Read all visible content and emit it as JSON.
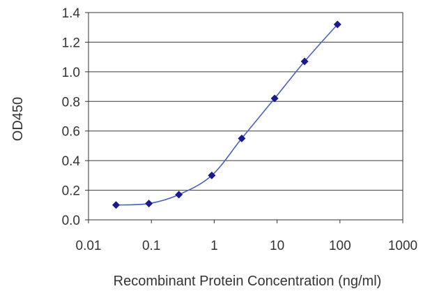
{
  "chart_data": {
    "type": "line",
    "title": "",
    "xlabel": "Recombinant Protein Concentration (ng/ml)",
    "ylabel": "OD450",
    "x_scale": "log",
    "xlim": [
      0.01,
      1000
    ],
    "ylim": [
      0.0,
      1.4
    ],
    "x_ticks": [
      0.01,
      0.1,
      1,
      10,
      100,
      1000
    ],
    "x_tick_labels": [
      "0.01",
      "0.1",
      "1",
      "10",
      "100",
      "1000"
    ],
    "y_ticks": [
      0.0,
      0.2,
      0.4,
      0.6,
      0.8,
      1.0,
      1.2,
      1.4
    ],
    "y_tick_labels": [
      "0.0",
      "0.2",
      "0.4",
      "0.6",
      "0.8",
      "1.0",
      "1.2",
      "1.4"
    ],
    "grid": "horizontal",
    "legend": "none",
    "series": [
      {
        "x": [
          0.0274,
          0.0914,
          0.274,
          0.914,
          2.74,
          9.14,
          27.4,
          91.4
        ],
        "y": [
          0.1,
          0.11,
          0.17,
          0.3,
          0.55,
          0.82,
          1.07,
          1.32
        ],
        "color": "#4a5fc1",
        "marker_color": "#1a1a8c",
        "marker": "diamond"
      }
    ]
  }
}
